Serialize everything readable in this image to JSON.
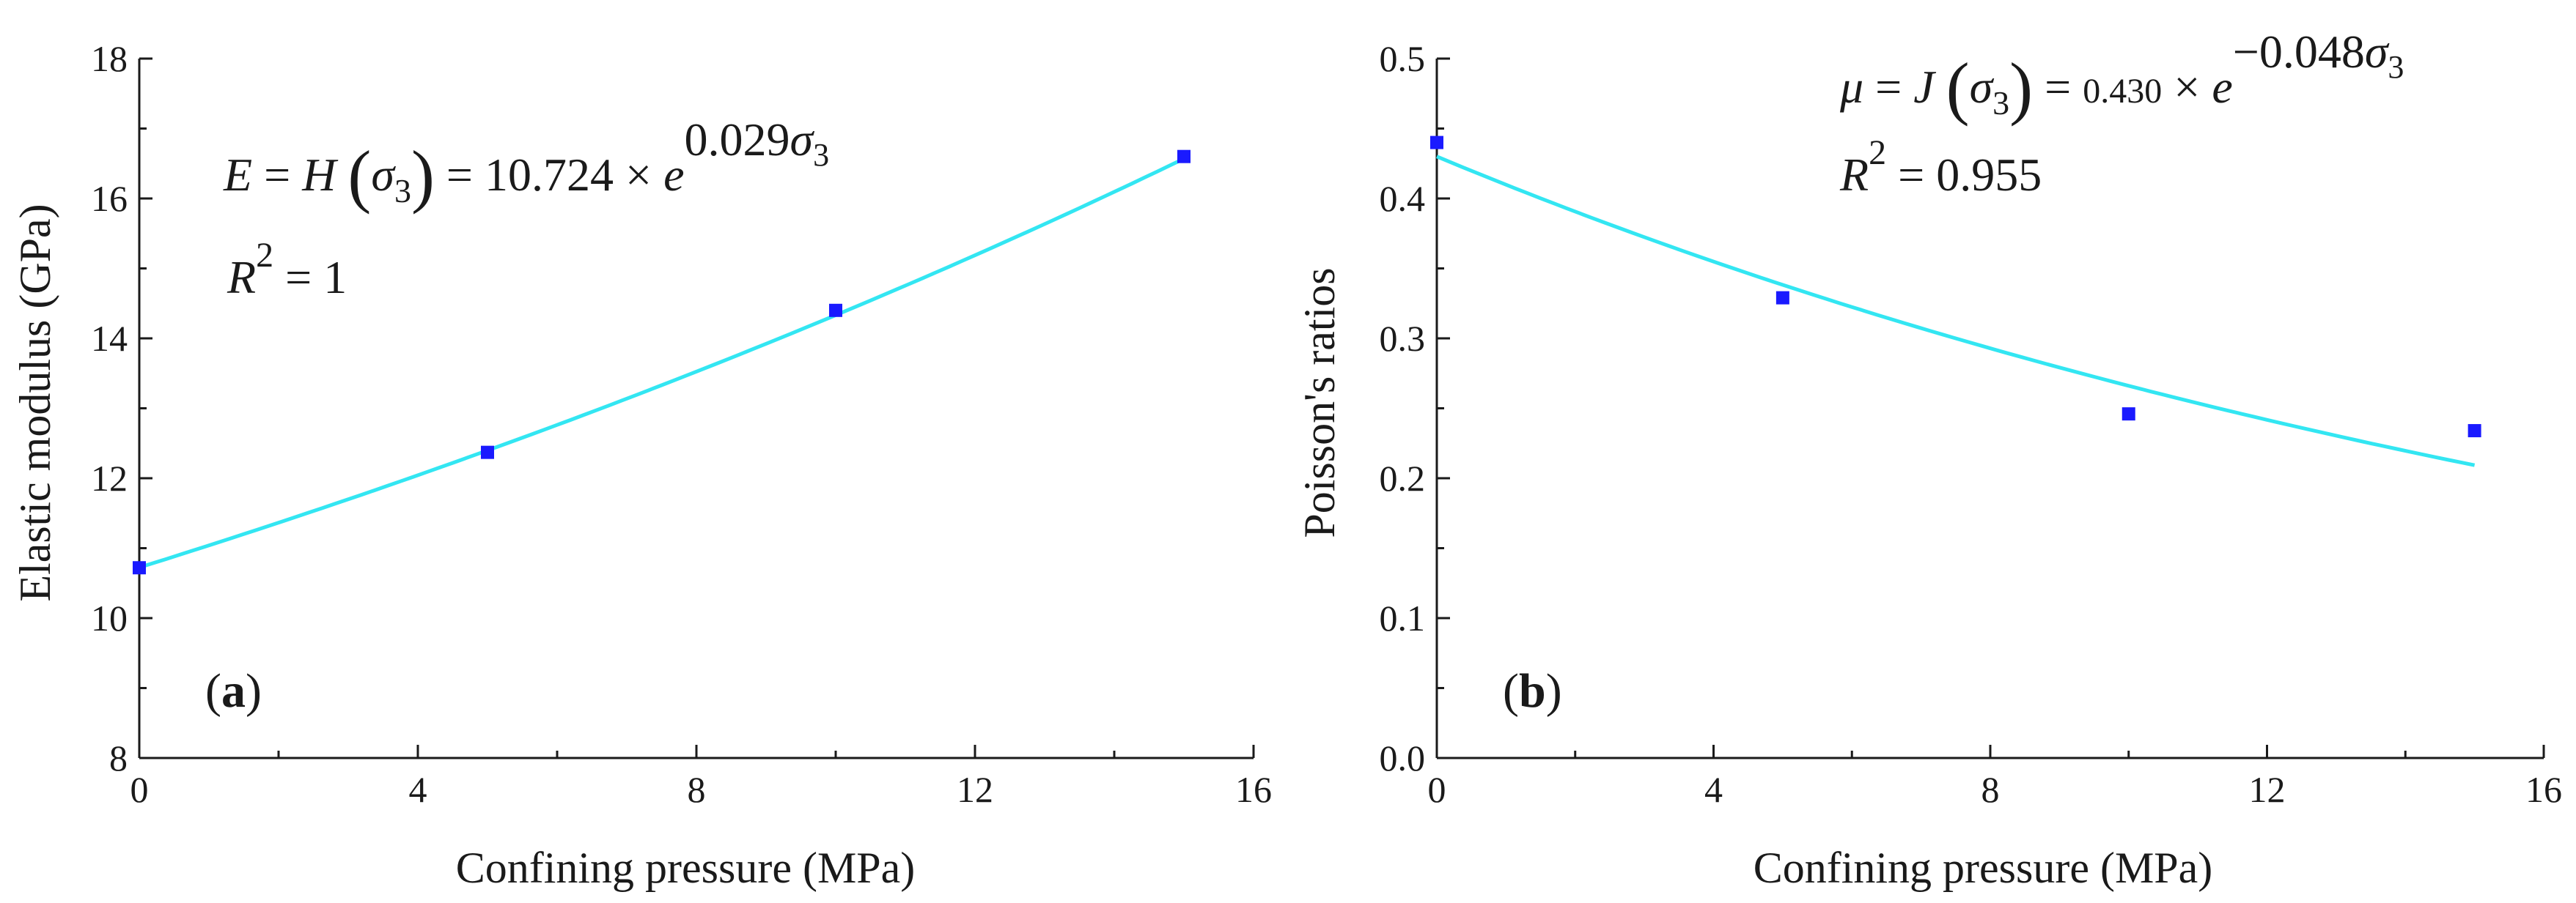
{
  "chart_data": [
    {
      "type": "scatter",
      "panel_label": "a",
      "xlabel": "Confining pressure (MPa)",
      "ylabel": "Elastic modulus (GPa)",
      "xlim": [
        0,
        16
      ],
      "ylim": [
        8,
        18
      ],
      "xticks": [
        "0",
        "4",
        "8",
        "12",
        "16"
      ],
      "yticks": [
        "8",
        "10",
        "12",
        "14",
        "16",
        "18"
      ],
      "grid": false,
      "series": [
        {
          "name": "measured",
          "x": [
            0,
            5,
            10,
            15
          ],
          "y": [
            10.72,
            12.37,
            14.4,
            16.6
          ],
          "color": "#1a1aff"
        }
      ],
      "fit": {
        "type": "exponential",
        "a": 10.724,
        "b": 0.029,
        "x_range": [
          0,
          15
        ],
        "color": "#33e6f2"
      },
      "equation": {
        "lhs_var": "E",
        "eq1": "=",
        "func": "H",
        "sigma": "σ",
        "sub": "3",
        "eq2": "=",
        "coef": "10.724",
        "times": "×",
        "base": "e",
        "exponent": "0.029",
        "r2_var": "R",
        "r2_sup": "2",
        "r2_eq": "=",
        "r2_value": "1"
      }
    },
    {
      "type": "scatter",
      "panel_label": "b",
      "xlabel": "Confining pressure (MPa)",
      "ylabel": "Poisson's ratios",
      "xlim": [
        0,
        16
      ],
      "ylim": [
        0.0,
        0.5
      ],
      "xticks": [
        "0",
        "4",
        "8",
        "12",
        "16"
      ],
      "yticks": [
        "0.0",
        "0.1",
        "0.2",
        "0.3",
        "0.4",
        "0.5"
      ],
      "grid": false,
      "series": [
        {
          "name": "measured",
          "x": [
            0,
            5,
            10,
            15
          ],
          "y": [
            0.44,
            0.329,
            0.246,
            0.234
          ],
          "color": "#1a1aff"
        }
      ],
      "fit": {
        "type": "exponential",
        "a": 0.43,
        "b": -0.048,
        "x_range": [
          0,
          15
        ],
        "color": "#33e6f2"
      },
      "equation": {
        "lhs_var": "μ",
        "eq1": "=",
        "func": "J",
        "sigma": "σ",
        "sub": "3",
        "eq2": "=",
        "coef": "0.430",
        "times": "×",
        "base": "e",
        "exponent": "−0.048",
        "r2_var": "R",
        "r2_sup": "2",
        "r2_eq": "=",
        "r2_value": "0.955"
      }
    }
  ],
  "colors": {
    "axis": "#1a1a1a",
    "marker": "#1a1aff",
    "fit": "#33e6f2"
  }
}
